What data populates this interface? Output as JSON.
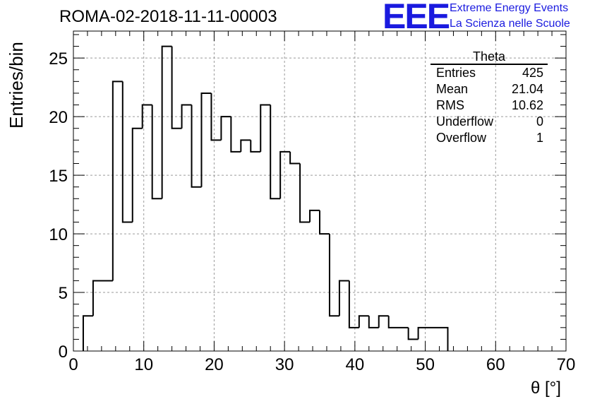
{
  "chart_data": {
    "type": "bar",
    "title": "ROMA-02-2018-11-11-00003",
    "xlabel": "θ [°]",
    "ylabel": "Entries/bin",
    "xlim": [
      0,
      70
    ],
    "ylim": [
      0,
      27.3
    ],
    "grid": true,
    "x_ticks": [
      0,
      10,
      20,
      30,
      40,
      50,
      60,
      70
    ],
    "y_ticks": [
      0,
      5,
      10,
      15,
      20,
      25
    ],
    "bin_edges": [
      1.4,
      2.8,
      5.6,
      7.0,
      8.4,
      9.8,
      11.2,
      12.6,
      14.0,
      15.4,
      16.8,
      18.2,
      19.6,
      21.0,
      22.4,
      23.8,
      25.2,
      26.6,
      28.0,
      29.4,
      30.8,
      32.2,
      33.6,
      35.0,
      36.4,
      37.8,
      39.2,
      40.6,
      42.0,
      43.4,
      44.8,
      47.6,
      49.0,
      53.2
    ],
    "values": [
      3,
      6,
      23,
      11,
      19,
      21,
      13,
      26,
      19,
      21,
      14,
      22,
      18,
      20,
      17,
      18,
      17,
      21,
      13,
      17,
      16,
      11,
      12,
      10,
      3,
      6,
      2,
      3,
      2,
      3,
      2,
      1,
      2
    ],
    "stats_box": {
      "name": "Theta",
      "rows": [
        {
          "label": "Entries",
          "value": "425"
        },
        {
          "label": "Mean",
          "value": "21.04"
        },
        {
          "label": "RMS",
          "value": "10.62"
        },
        {
          "label": "Underflow",
          "value": "0"
        },
        {
          "label": "Overflow",
          "value": "1"
        }
      ]
    }
  },
  "logo": {
    "mark": "EEE",
    "line1": "Extreme Energy Events",
    "line2": "La Scienza nelle Scuole",
    "color": "#1a1adf"
  }
}
